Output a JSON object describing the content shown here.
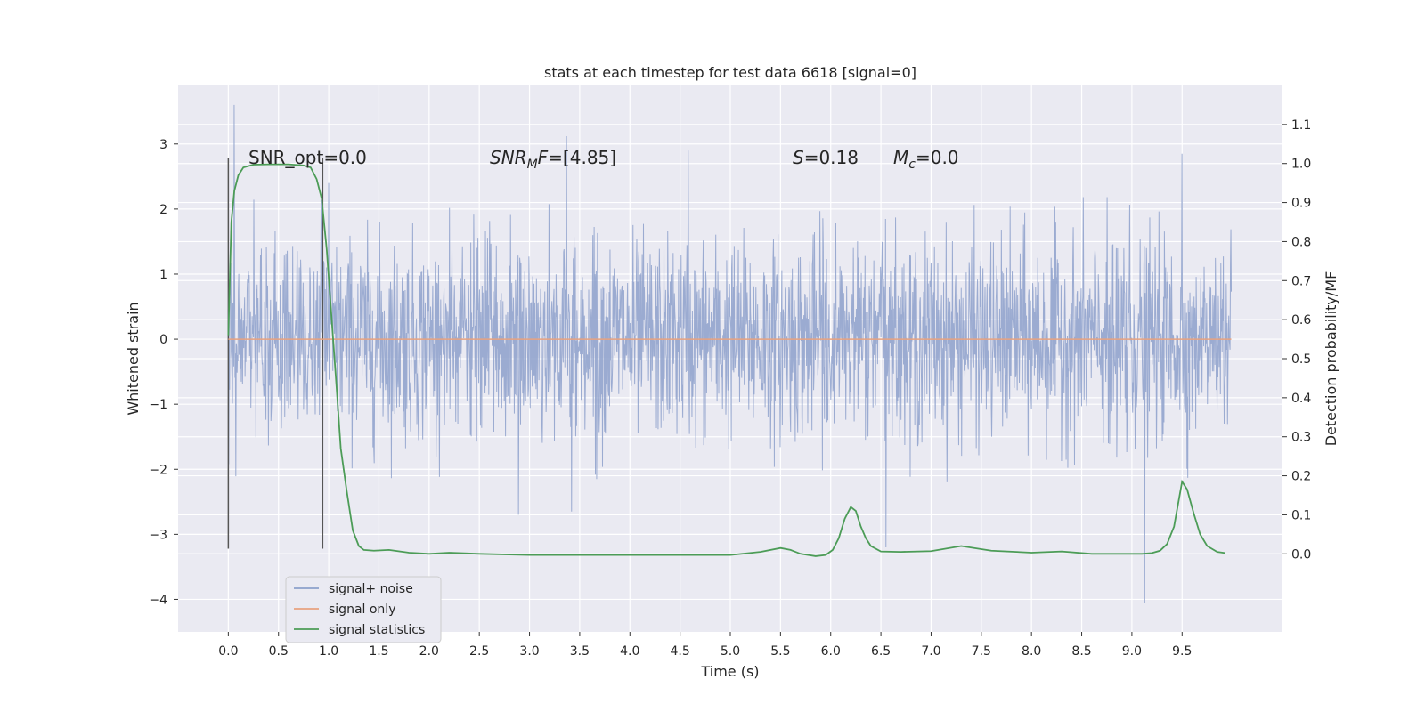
{
  "chart_data": {
    "type": "line",
    "title": "stats at each timestep for test data 6618 [signal=0]",
    "xlabel": "Time (s)",
    "ylabel_left": "Whitened strain",
    "ylabel_right": "Detection probability/MF",
    "xlim": [
      -0.5,
      10.5
    ],
    "ylim_left": [
      -4.5,
      3.9
    ],
    "ylim_right": [
      -0.2,
      1.2
    ],
    "x_ticks": [
      "0.0",
      "0.5",
      "1.0",
      "1.5",
      "2.0",
      "2.5",
      "3.0",
      "3.5",
      "4.0",
      "4.5",
      "5.0",
      "5.5",
      "6.0",
      "6.5",
      "7.0",
      "7.5",
      "8.0",
      "8.5",
      "9.0",
      "9.5"
    ],
    "y_left_ticks": [
      "3",
      "2",
      "1",
      "0",
      "−1",
      "−2",
      "−3",
      "−4"
    ],
    "y_right_ticks": [
      "1.1",
      "1.0",
      "0.9",
      "0.8",
      "0.7",
      "0.6",
      "0.5",
      "0.4",
      "0.3",
      "0.2",
      "0.1",
      "0.0"
    ],
    "grid": true,
    "legend_position": "lower-left",
    "annotations": {
      "snr_opt": "SNR_opt=0.0",
      "snr_mf_name": "SNR",
      "snr_mf_sub": "M",
      "snr_mf_tail": "F",
      "snr_mf_value": "=[4.85]",
      "s_name": "S",
      "s_value": "=0.18",
      "mc_name": "M",
      "mc_sub": "c",
      "mc_value": "=0.0"
    },
    "vertical_markers_x": [
      0.0,
      0.94
    ],
    "series": [
      {
        "name": "signal+ noise",
        "axis": "left",
        "color": "#8da0cb",
        "x_range": [
          0.0,
          9.99
        ],
        "typical_abs_max": 2.2,
        "peaks": [
          {
            "x": 0.06,
            "y": 3.6
          },
          {
            "x": 3.37,
            "y": 3.12
          },
          {
            "x": 4.58,
            "y": 2.9
          },
          {
            "x": 9.5,
            "y": 2.85
          },
          {
            "x": 9.13,
            "y": -4.05
          },
          {
            "x": 2.89,
            "y": -2.7
          },
          {
            "x": 3.42,
            "y": -2.65
          },
          {
            "x": 1.0,
            "y": 2.4
          },
          {
            "x": 6.55,
            "y": -3.2
          }
        ]
      },
      {
        "name": "signal only",
        "axis": "left",
        "color": "#e8a27f",
        "x": [
          0.0,
          9.99
        ],
        "y": [
          0.0,
          0.0
        ]
      },
      {
        "name": "signal statistics",
        "axis": "right",
        "color": "#4c9c57",
        "x": [
          0.0,
          0.03,
          0.06,
          0.1,
          0.15,
          0.25,
          0.4,
          0.6,
          0.75,
          0.82,
          0.88,
          0.93,
          0.98,
          1.03,
          1.08,
          1.12,
          1.18,
          1.24,
          1.3,
          1.35,
          1.45,
          1.6,
          1.8,
          2.0,
          2.2,
          2.5,
          3.0,
          3.5,
          4.0,
          4.5,
          5.0,
          5.3,
          5.5,
          5.6,
          5.7,
          5.85,
          5.95,
          6.02,
          6.08,
          6.14,
          6.2,
          6.25,
          6.3,
          6.35,
          6.4,
          6.5,
          6.7,
          7.0,
          7.3,
          7.6,
          8.0,
          8.3,
          8.6,
          9.0,
          9.1,
          9.2,
          9.28,
          9.35,
          9.42,
          9.5,
          9.55,
          9.62,
          9.68,
          9.75,
          9.85,
          9.93
        ],
        "y": [
          0.56,
          0.85,
          0.93,
          0.97,
          0.99,
          0.997,
          0.998,
          0.998,
          0.995,
          0.99,
          0.96,
          0.91,
          0.78,
          0.6,
          0.42,
          0.27,
          0.16,
          0.06,
          0.02,
          0.01,
          0.008,
          0.01,
          0.003,
          0.0,
          0.003,
          0.0,
          -0.003,
          -0.003,
          -0.003,
          -0.003,
          -0.003,
          0.005,
          0.015,
          0.01,
          0.0,
          -0.006,
          -0.003,
          0.01,
          0.04,
          0.09,
          0.12,
          0.11,
          0.07,
          0.04,
          0.02,
          0.006,
          0.005,
          0.007,
          0.02,
          0.008,
          0.003,
          0.006,
          0.0,
          0.0,
          0.0,
          0.002,
          0.008,
          0.025,
          0.07,
          0.185,
          0.165,
          0.1,
          0.05,
          0.02,
          0.005,
          0.002
        ]
      }
    ]
  }
}
